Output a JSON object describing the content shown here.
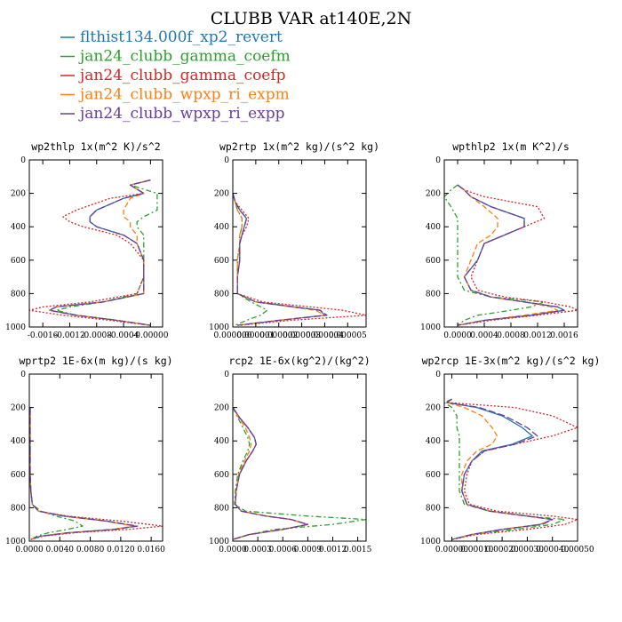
{
  "figure": {
    "title": "CLUBB VAR at140E,2N",
    "legend": [
      {
        "label": "flthist134.000f_xp2_revert",
        "color": "#1f77b4"
      },
      {
        "label": "jan24_clubb_gamma_coefm",
        "color": "#2ca02c"
      },
      {
        "label": "jan24_clubb_gamma_coefp",
        "color": "#d62728"
      },
      {
        "label": "jan24_clubb_wpxp_ri_expm",
        "color": "#ff7f0e"
      },
      {
        "label": "jan24_clubb_wpxp_ri_expp",
        "color": "#6a3d9a"
      }
    ]
  },
  "chart_data": [
    {
      "type": "line",
      "title": "wp2thlp  1x(m^2 K)/s^2",
      "xlim": [
        -0.0018,
        0.00018
      ],
      "ylim": [
        1000,
        0
      ],
      "xticks": [
        -0.0016,
        -0.0012,
        -0.0008,
        -0.0004,
        0.0
      ],
      "xtick_labels": [
        "-0.0016",
        "-0.0012",
        "-0.0008",
        "-0.0004",
        "-0.00000"
      ],
      "yticks": [
        0,
        200,
        400,
        600,
        800,
        1000
      ],
      "y": [
        120,
        150,
        200,
        230,
        300,
        340,
        370,
        400,
        450,
        500,
        600,
        700,
        800,
        850,
        880,
        900,
        930,
        960,
        990
      ],
      "series": [
        {
          "color": "#1f77b4",
          "dash": "",
          "x": [
            0.0,
            -0.0003,
            -0.0001,
            -0.0004,
            -0.0008,
            -0.0009,
            -0.0009,
            -0.0008,
            -0.0004,
            -0.0002,
            -0.0001,
            -0.0001,
            -0.0001,
            -0.0007,
            -0.0014,
            -0.0015,
            -0.0011,
            -0.0005,
            0.0
          ]
        },
        {
          "color": "#2ca02c",
          "dash": "6,3,2,3",
          "x": [
            0.0,
            -0.0003,
            0.0001,
            0.0001,
            0.0001,
            -0.0001,
            -0.0002,
            -0.0002,
            -0.0001,
            -0.0001,
            -0.0001,
            -0.0001,
            -0.0002,
            -0.0007,
            -0.0012,
            -0.0014,
            -0.0011,
            -0.0005,
            0.0
          ]
        },
        {
          "color": "#d62728",
          "dash": "2,2",
          "x": [
            0.0,
            -0.0003,
            -0.0001,
            -0.0006,
            -0.0011,
            -0.0013,
            -0.0012,
            -0.001,
            -0.0005,
            -0.0003,
            -0.0001,
            -0.0001,
            -0.0002,
            -0.0009,
            -0.0016,
            -0.0018,
            -0.0013,
            -0.0006,
            0.0
          ]
        },
        {
          "color": "#ff7f0e",
          "dash": "6,3",
          "x": [
            0.0,
            -0.0003,
            -0.0001,
            -0.0003,
            -0.0004,
            -0.0004,
            -0.0003,
            -0.0003,
            -0.0002,
            -0.0002,
            -0.0001,
            -0.0001,
            -0.0001,
            -0.0007,
            -0.0014,
            -0.0015,
            -0.0011,
            -0.0005,
            0.0
          ]
        },
        {
          "color": "#6a3d9a",
          "dash": "8,3",
          "x": [
            0.0,
            -0.0003,
            -0.0001,
            -0.0004,
            -0.0008,
            -0.0009,
            -0.0009,
            -0.0008,
            -0.0004,
            -0.0002,
            -0.0001,
            -0.0001,
            -0.0001,
            -0.0007,
            -0.0014,
            -0.0015,
            -0.0011,
            -0.0005,
            0.0
          ]
        }
      ]
    },
    {
      "type": "line",
      "title": "wp2rtp  1x(m^2 kg)/(s^2 kg)",
      "xlim": [
        0.0,
        5.8e-06
      ],
      "ylim": [
        1000,
        0
      ],
      "xticks": [
        0.0,
        1e-06,
        2e-06,
        3e-06,
        4e-06,
        5e-06
      ],
      "xtick_labels": [
        "0.000000",
        "0.000001",
        "0.000002",
        "0.000003",
        "0.000004",
        "0.000005"
      ],
      "yticks": [
        0,
        200,
        400,
        600,
        800,
        1000
      ],
      "y": [
        200,
        250,
        300,
        350,
        400,
        450,
        500,
        600,
        700,
        800,
        850,
        900,
        930,
        960,
        990
      ],
      "series": [
        {
          "color": "#1f77b4",
          "dash": "",
          "x": [
            0.0,
            1e-07,
            3e-07,
            6e-07,
            5e-07,
            4e-07,
            3e-07,
            3e-07,
            2e-07,
            2e-07,
            1e-06,
            3.8e-06,
            4e-06,
            2e-06,
            2e-07
          ]
        },
        {
          "color": "#2ca02c",
          "dash": "6,3,2,3",
          "x": [
            0.0,
            1e-07,
            2e-07,
            4e-07,
            4e-07,
            3e-07,
            3e-07,
            2e-07,
            2e-07,
            2e-07,
            8e-07,
            1.5e-06,
            1.2e-06,
            6e-07,
            1e-07
          ]
        },
        {
          "color": "#d62728",
          "dash": "2,2",
          "x": [
            0.0,
            1e-07,
            4e-07,
            7e-07,
            6e-07,
            4e-07,
            3e-07,
            3e-07,
            2e-07,
            2e-07,
            1.3e-06,
            4.8e-06,
            5.8e-06,
            2.5e-06,
            3e-07
          ]
        },
        {
          "color": "#ff7f0e",
          "dash": "6,3",
          "x": [
            0.0,
            1e-07,
            2e-07,
            4e-07,
            4e-07,
            3e-07,
            3e-07,
            2e-07,
            2e-07,
            2e-07,
            1e-06,
            3.6e-06,
            4e-06,
            2e-06,
            2e-07
          ]
        },
        {
          "color": "#6a3d9a",
          "dash": "8,3",
          "x": [
            0.0,
            1e-07,
            3e-07,
            6e-07,
            5e-07,
            4e-07,
            3e-07,
            3e-07,
            2e-07,
            2e-07,
            1e-06,
            3.8e-06,
            4.1e-06,
            2e-06,
            2e-07
          ]
        }
      ]
    },
    {
      "type": "line",
      "title": "wpthlp2  1x(m K^2)/s",
      "xlim": [
        -0.0002,
        0.0018
      ],
      "ylim": [
        1000,
        0
      ],
      "xticks": [
        0.0,
        0.0004,
        0.0008,
        0.0012,
        0.0016
      ],
      "xtick_labels": [
        "0.0000",
        "0.0004",
        "0.0008",
        "0.0012",
        "0.0016"
      ],
      "yticks": [
        0,
        200,
        400,
        600,
        800,
        1000
      ],
      "y": [
        150,
        180,
        220,
        280,
        350,
        400,
        450,
        500,
        600,
        700,
        780,
        820,
        850,
        880,
        900,
        930,
        960,
        990
      ],
      "series": [
        {
          "color": "#1f77b4",
          "dash": "",
          "x": [
            0.0,
            0.0001,
            0.0002,
            0.0005,
            0.001,
            0.001,
            0.0007,
            0.0004,
            0.0003,
            0.0001,
            0.0002,
            0.0005,
            0.001,
            0.0015,
            0.0016,
            0.0011,
            0.0004,
            0.0
          ]
        },
        {
          "color": "#2ca02c",
          "dash": "6,3,2,3",
          "x": [
            0.0,
            -0.0001,
            -0.0002,
            -0.0001,
            0.0,
            0.0,
            0.0,
            0.0,
            0.0,
            0.0,
            0.0001,
            0.0005,
            0.0013,
            0.0011,
            0.0008,
            0.0003,
            0.0001,
            0.0
          ]
        },
        {
          "color": "#d62728",
          "dash": "2,2",
          "x": [
            0.0,
            0.0001,
            0.0004,
            0.0012,
            0.0013,
            0.001,
            0.0007,
            0.0004,
            0.0003,
            0.0002,
            0.0003,
            0.0007,
            0.0013,
            0.0017,
            0.0018,
            0.0012,
            0.0005,
            0.0
          ]
        },
        {
          "color": "#ff7f0e",
          "dash": "6,3",
          "x": [
            0.0,
            0.0001,
            0.0002,
            0.0004,
            0.0006,
            0.0006,
            0.0005,
            0.0003,
            0.0002,
            0.0001,
            0.0002,
            0.0005,
            0.001,
            0.0014,
            0.0015,
            0.001,
            0.0004,
            0.0
          ]
        },
        {
          "color": "#6a3d9a",
          "dash": "8,3",
          "x": [
            0.0,
            0.0001,
            0.0002,
            0.0005,
            0.001,
            0.001,
            0.0007,
            0.0004,
            0.0003,
            0.0001,
            0.0002,
            0.0005,
            0.001,
            0.0015,
            0.0016,
            0.0011,
            0.0004,
            0.0
          ]
        }
      ]
    },
    {
      "type": "line",
      "title": "wprtp2  1E-6x(m kg)/(s kg)",
      "xlim": [
        0.0,
        0.0175
      ],
      "ylim": [
        1000,
        0
      ],
      "xticks": [
        0.0,
        0.004,
        0.008,
        0.012,
        0.016
      ],
      "xtick_labels": [
        "0.0000",
        "0.0040",
        "0.0080",
        "0.0120",
        "0.0160"
      ],
      "yticks": [
        0,
        200,
        400,
        600,
        800,
        1000
      ],
      "y": [
        200,
        300,
        400,
        500,
        600,
        700,
        780,
        820,
        850,
        880,
        910,
        930,
        950,
        970,
        990
      ],
      "series": [
        {
          "color": "#1f77b4",
          "dash": "",
          "x": [
            0.0001,
            0.0001,
            0.0001,
            0.0001,
            0.0001,
            0.0002,
            0.0004,
            0.0012,
            0.0045,
            0.01,
            0.014,
            0.011,
            0.005,
            0.0015,
            0.0002
          ]
        },
        {
          "color": "#2ca02c",
          "dash": "6,3,2,3",
          "x": [
            0.0001,
            0.0001,
            0.0001,
            0.0001,
            0.0001,
            0.0002,
            0.0004,
            0.0015,
            0.0035,
            0.006,
            0.007,
            0.005,
            0.0025,
            0.001,
            0.0002
          ]
        },
        {
          "color": "#d62728",
          "dash": "2,2",
          "x": [
            0.0001,
            0.0001,
            0.0001,
            0.0001,
            0.0001,
            0.0002,
            0.0004,
            0.0012,
            0.005,
            0.012,
            0.0175,
            0.013,
            0.006,
            0.0018,
            0.0002
          ]
        },
        {
          "color": "#ff7f0e",
          "dash": "6,3",
          "x": [
            0.0001,
            0.0001,
            0.0001,
            0.0001,
            0.0001,
            0.0002,
            0.0004,
            0.0012,
            0.0045,
            0.01,
            0.0138,
            0.0108,
            0.005,
            0.0015,
            0.0002
          ]
        },
        {
          "color": "#6a3d9a",
          "dash": "8,3",
          "x": [
            0.0001,
            0.0001,
            0.0001,
            0.0001,
            0.0001,
            0.0002,
            0.0004,
            0.0012,
            0.0046,
            0.0102,
            0.0142,
            0.0112,
            0.0051,
            0.0015,
            0.0002
          ]
        }
      ]
    },
    {
      "type": "line",
      "title": "rcp2  1E-6x(kg^2)/(kg^2)",
      "xlim": [
        0.0,
        0.0016
      ],
      "ylim": [
        1000,
        0
      ],
      "xticks": [
        0.0,
        0.0003,
        0.0006,
        0.0009,
        0.0012,
        0.0015
      ],
      "xtick_labels": [
        "0.0000",
        "0.0003",
        "0.0006",
        "0.0009",
        "0.0012",
        "0.0015"
      ],
      "yticks": [
        0,
        200,
        400,
        600,
        800,
        1000
      ],
      "y": [
        200,
        260,
        320,
        380,
        420,
        460,
        520,
        600,
        700,
        780,
        820,
        850,
        870,
        900,
        930,
        960,
        990
      ],
      "series": [
        {
          "color": "#1f77b4",
          "dash": "",
          "x": [
            0.0,
            8e-05,
            0.00018,
            0.00026,
            0.00028,
            0.00024,
            0.00016,
            8e-05,
            4e-05,
            3e-05,
            0.0001,
            0.0004,
            0.0007,
            0.0009,
            0.0006,
            0.0002,
            0.0
          ]
        },
        {
          "color": "#2ca02c",
          "dash": "6,3,2,3",
          "x": [
            0.0,
            6e-05,
            0.00012,
            0.00018,
            0.0002,
            0.00018,
            0.00012,
            6e-05,
            3e-05,
            2e-05,
            0.00015,
            0.0009,
            0.0016,
            0.0012,
            0.0005,
            0.0002,
            0.0
          ]
        },
        {
          "color": "#d62728",
          "dash": "2,2",
          "x": [
            0.0,
            8e-05,
            0.00018,
            0.00026,
            0.00028,
            0.00024,
            0.00016,
            8e-05,
            4e-05,
            3e-05,
            0.0001,
            0.0004,
            0.0007,
            0.0009,
            0.0006,
            0.0002,
            0.0
          ]
        },
        {
          "color": "#ff7f0e",
          "dash": "6,3",
          "x": [
            0.0,
            7e-05,
            0.00015,
            0.0002,
            0.00022,
            0.0002,
            0.00014,
            7e-05,
            4e-05,
            3e-05,
            0.0001,
            0.0004,
            0.0007,
            0.0009,
            0.0006,
            0.0002,
            0.0
          ]
        },
        {
          "color": "#6a3d9a",
          "dash": "8,3",
          "x": [
            0.0,
            8e-05,
            0.00018,
            0.00026,
            0.00028,
            0.00024,
            0.00016,
            8e-05,
            4e-05,
            3e-05,
            0.0001,
            0.0004,
            0.0007,
            0.0009,
            0.0006,
            0.0002,
            0.0
          ]
        }
      ]
    },
    {
      "type": "line",
      "title": "wp2rcp  1E-3x(m^2 kg)/(s^2 kg)",
      "xlim": [
        -3e-05,
        0.0005
      ],
      "ylim": [
        1000,
        0
      ],
      "xticks": [
        0.0,
        0.0001,
        0.0002,
        0.0003,
        0.0004,
        0.0005
      ],
      "xtick_labels": [
        "0.00000",
        "0.00010",
        "0.00020",
        "0.00030",
        "0.00040",
        "0.00050"
      ],
      "yticks": [
        0,
        200,
        400,
        600,
        800,
        1000
      ],
      "y": [
        150,
        170,
        200,
        250,
        320,
        370,
        420,
        460,
        520,
        600,
        700,
        780,
        820,
        850,
        870,
        900,
        930,
        960,
        990
      ],
      "series": [
        {
          "color": "#1f77b4",
          "dash": "",
          "x": [
            0.0,
            -2e-05,
            0.0001,
            0.0002,
            0.00028,
            0.00032,
            0.00024,
            0.00012,
            8e-05,
            5e-05,
            4e-05,
            6e-05,
            0.00015,
            0.0003,
            0.0004,
            0.00035,
            0.0002,
            8e-05,
            0.0
          ]
        },
        {
          "color": "#2ca02c",
          "dash": "6,3,2,3",
          "x": [
            0.0,
            -3e-05,
            0.0,
            2e-05,
            2e-05,
            3e-05,
            3e-05,
            3e-05,
            3e-05,
            3e-05,
            3e-05,
            5e-05,
            0.00015,
            0.0003,
            0.00045,
            0.0004,
            0.00025,
            8e-05,
            0.0
          ]
        },
        {
          "color": "#d62728",
          "dash": "2,2",
          "x": [
            0.0,
            -2e-05,
            0.00025,
            0.0004,
            0.0005,
            0.0004,
            0.00025,
            0.00013,
            8e-05,
            6e-05,
            5e-05,
            7e-05,
            0.00018,
            0.0004,
            0.0005,
            0.00045,
            0.0003,
            0.0001,
            0.0
          ]
        },
        {
          "color": "#ff7f0e",
          "dash": "6,3",
          "x": [
            0.0,
            -2e-05,
            5e-05,
            0.00012,
            0.00016,
            0.00018,
            0.00016,
            0.0001,
            6e-05,
            4e-05,
            4e-05,
            6e-05,
            0.00015,
            0.0003,
            0.0004,
            0.00035,
            0.0002,
            8e-05,
            0.0
          ]
        },
        {
          "color": "#6a3d9a",
          "dash": "8,3",
          "x": [
            0.0,
            -2e-05,
            0.00011,
            0.00021,
            0.0003,
            0.00034,
            0.00025,
            0.00013,
            8e-05,
            5e-05,
            4e-05,
            6e-05,
            0.00015,
            0.0003,
            0.0004,
            0.00036,
            0.0002,
            8e-05,
            0.0
          ]
        }
      ]
    }
  ]
}
